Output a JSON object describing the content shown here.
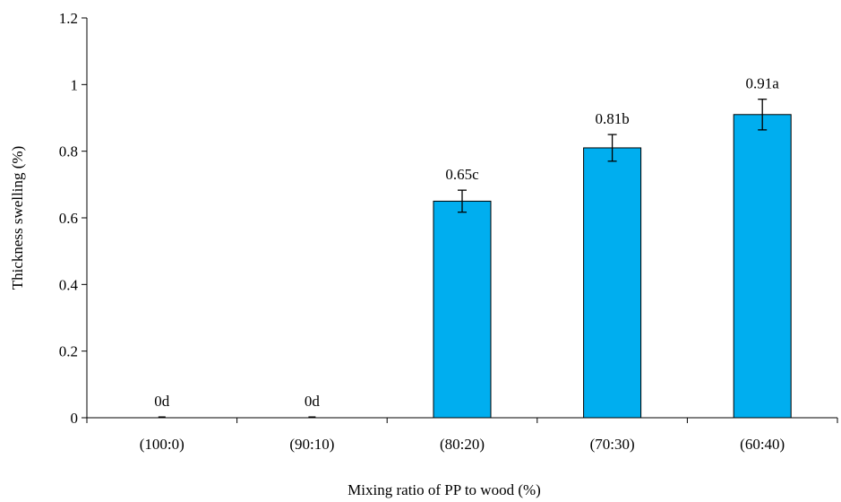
{
  "chart_data": {
    "type": "bar",
    "title": "",
    "xlabel": "Mixing ratio of PP to wood (%)",
    "ylabel": "Thickness swelling (%)",
    "categories": [
      "(100:0)",
      "(90:10)",
      "(80:20)",
      "(70:30)",
      "(60:40)"
    ],
    "values": [
      0,
      0,
      0.65,
      0.81,
      0.91
    ],
    "errors": [
      0,
      0,
      0.033,
      0.04,
      0.046
    ],
    "data_labels": [
      "0d",
      "0d",
      "0.65c",
      "0.81b",
      "0.91a"
    ],
    "ylim": [
      0,
      1.2
    ],
    "yticks": [
      0,
      0.2,
      0.4,
      0.6,
      0.8,
      1,
      1.2
    ],
    "ytick_labels": [
      "0",
      "0.2",
      "0.4",
      "0.6",
      "0.8",
      "1",
      "1.2"
    ],
    "grid": false,
    "legend": "none",
    "bar_color": "#00AEEF",
    "bar_edge_color": "#000000"
  }
}
